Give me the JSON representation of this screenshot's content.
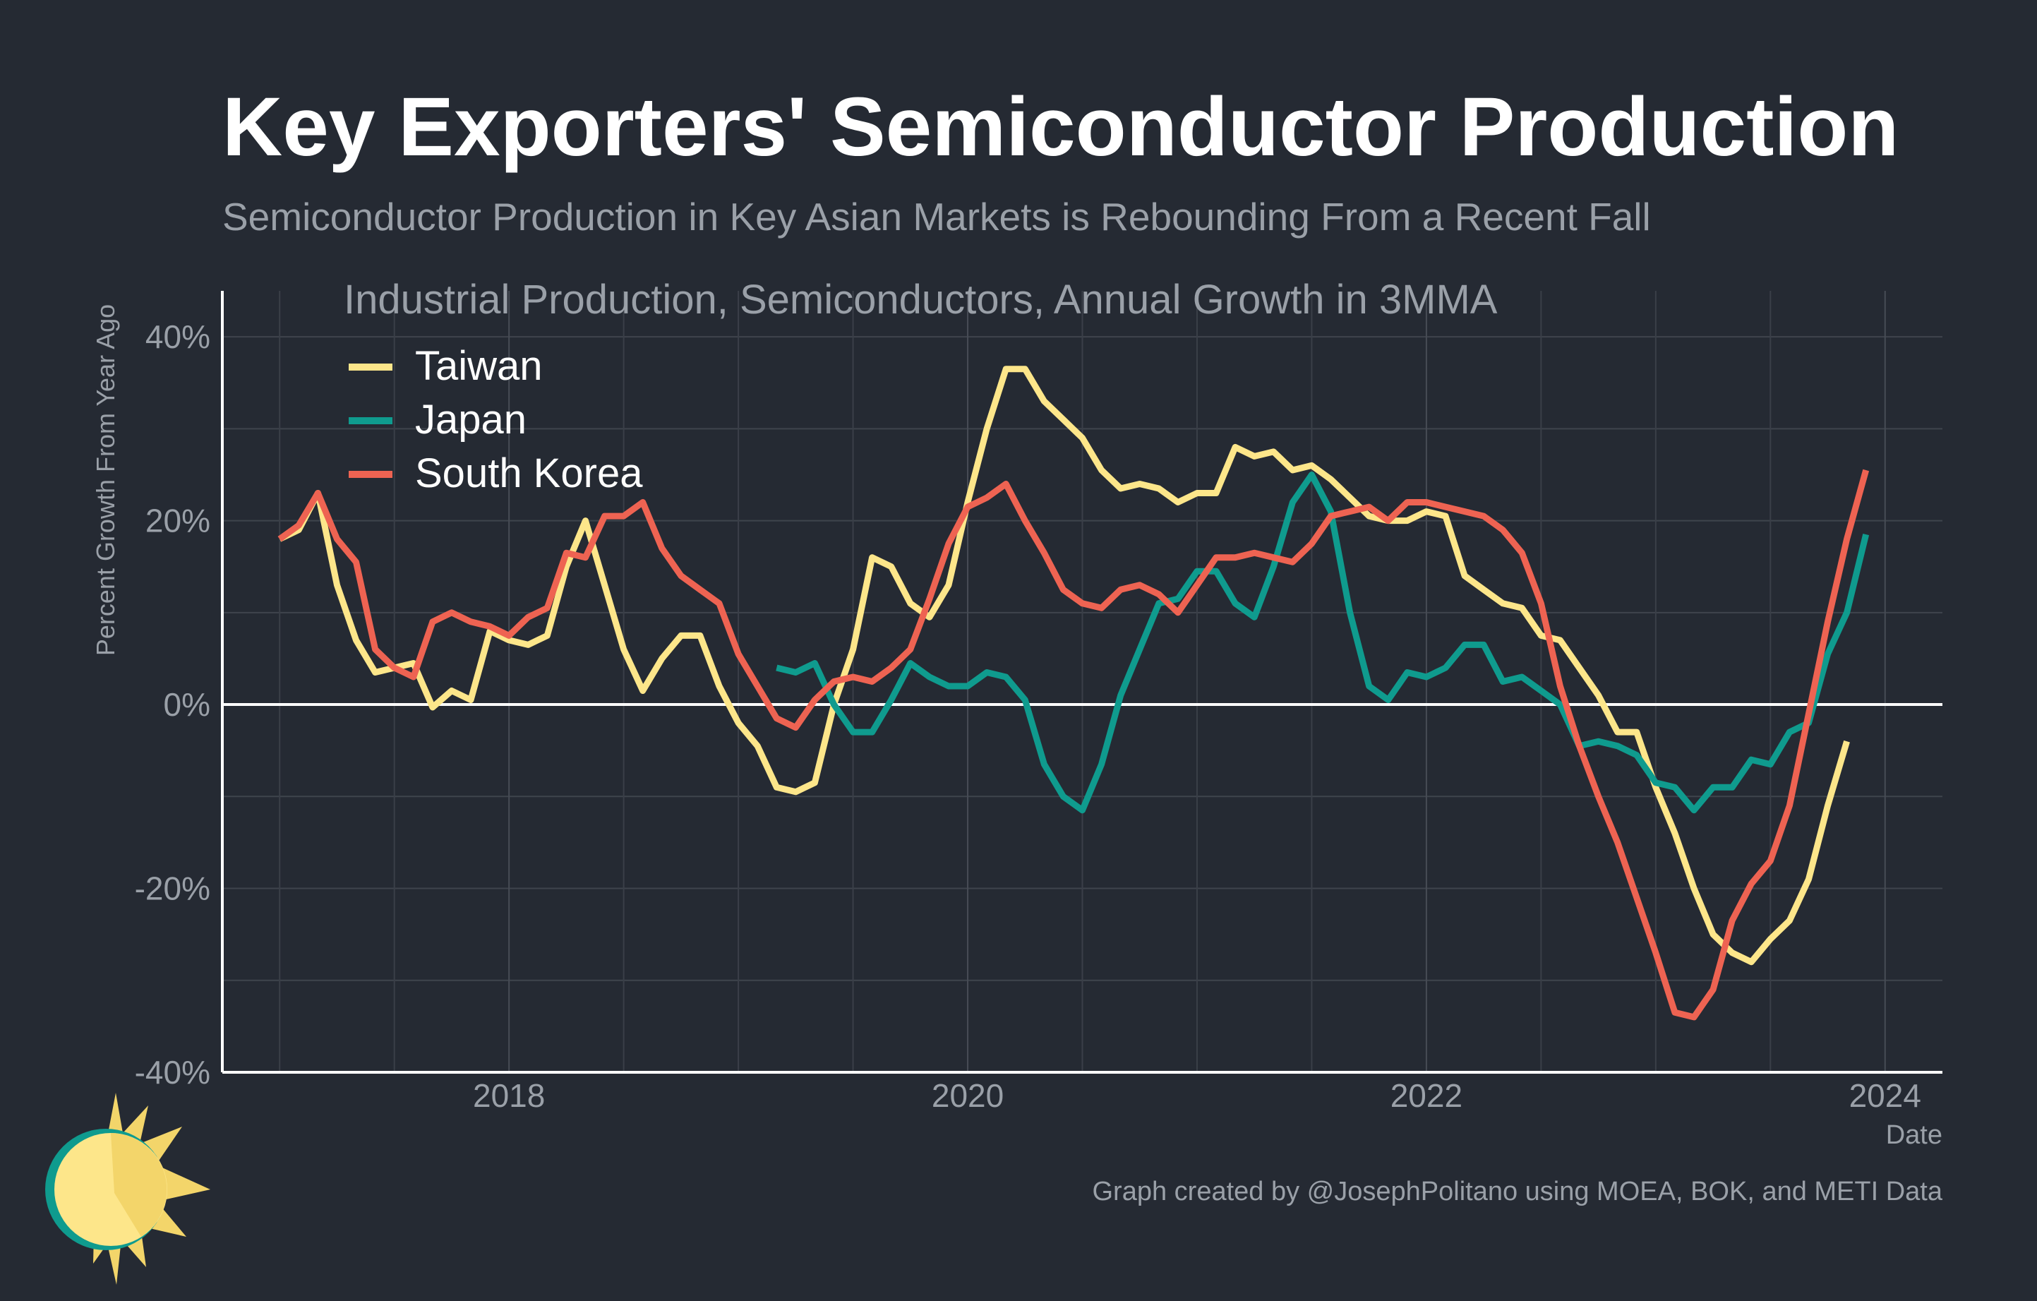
{
  "chart_data": {
    "type": "line",
    "title": "Key Exporters' Semiconductor Production",
    "subtitle": "Semiconductor Production in Key Asian Markets is Rebounding From a Recent Fall",
    "inner_title": "Industrial Production, Semiconductors, Annual Growth in 3MMA",
    "xlabel": "Date",
    "ylabel": "Percent Growth From Year Ago",
    "caption": "Graph created by @JosephPolitano using MOEA, BOK, and METI Data",
    "xlim": [
      2016.75,
      2024.25
    ],
    "ylim": [
      -40,
      45
    ],
    "x_ticks": [
      {
        "value": 2018,
        "label": "2018"
      },
      {
        "value": 2020,
        "label": "2020"
      },
      {
        "value": 2022,
        "label": "2022"
      },
      {
        "value": 2024,
        "label": "2024"
      }
    ],
    "y_ticks": [
      {
        "value": 40,
        "label": "40%"
      },
      {
        "value": 20,
        "label": "20%"
      },
      {
        "value": 0,
        "label": "0%"
      },
      {
        "value": -20,
        "label": "-20%"
      },
      {
        "value": -40,
        "label": "-40%"
      }
    ],
    "legend_position": "top-left",
    "grid": true,
    "zero_line": true,
    "series": [
      {
        "name": "Taiwan",
        "color": "#fde68a",
        "start": 2017.0,
        "values": [
          18,
          19,
          23,
          13,
          7,
          3.5,
          4,
          4.5,
          -0.3,
          1.5,
          0.5,
          8,
          7,
          6.5,
          7.5,
          15,
          20,
          13,
          6,
          1.5,
          5,
          7.5,
          7.5,
          2,
          -2,
          -4.5,
          -9,
          -9.5,
          -8.5,
          0,
          6,
          16,
          15,
          11,
          9.5,
          13,
          22,
          30,
          36.5,
          36.5,
          33,
          31,
          29,
          25.5,
          23.5,
          24,
          23.5,
          22,
          23,
          23,
          28,
          27,
          27.5,
          25.5,
          26,
          24.5,
          22.5,
          20.5,
          20,
          20,
          21,
          20.5,
          14,
          12.5,
          11,
          10.5,
          7.5,
          7,
          4,
          1,
          -3,
          -3,
          -9,
          -14,
          -20,
          -25,
          -27,
          -28,
          -25.5,
          -23.5,
          -19,
          -11,
          -4
        ]
      },
      {
        "name": "Japan",
        "color": "#0f9b8e",
        "start": 2019.1667,
        "values": [
          4,
          3.5,
          4.5,
          0,
          -3,
          -3,
          0.5,
          4.5,
          3,
          2,
          2,
          3.5,
          3,
          0.5,
          -6.5,
          -10,
          -11.5,
          -6.5,
          1,
          6,
          11,
          11.5,
          14.5,
          14.5,
          11,
          9.5,
          15,
          22,
          25,
          21,
          10,
          2,
          0.5,
          3.5,
          3,
          4,
          6.5,
          6.5,
          2.5,
          3,
          1.5,
          0,
          -4.5,
          -4,
          -4.5,
          -5.5,
          -8.5,
          -9,
          -11.5,
          -9,
          -9,
          -6,
          -6.5,
          -3,
          -2,
          5.5,
          10,
          18.5
        ]
      },
      {
        "name": "South Korea",
        "color": "#ee6352",
        "start": 2017.0,
        "values": [
          18,
          19.5,
          23,
          18,
          15.5,
          6,
          4,
          3,
          9,
          10,
          9,
          8.5,
          7.5,
          9.5,
          10.5,
          16.5,
          16,
          20.5,
          20.5,
          22,
          17,
          14,
          12.5,
          11,
          5.5,
          2,
          -1.5,
          -2.5,
          0.5,
          2.5,
          3,
          2.5,
          4,
          6,
          11.5,
          17.5,
          21.5,
          22.5,
          24,
          20,
          16.5,
          12.5,
          11,
          10.5,
          12.5,
          13,
          12,
          10,
          13,
          16,
          16,
          16.5,
          16,
          15.5,
          17.5,
          20.5,
          21,
          21.5,
          20,
          22,
          22,
          21.5,
          21,
          20.5,
          19,
          16.5,
          11,
          2,
          -4.5,
          -10,
          -15,
          -21,
          -27,
          -33.5,
          -34,
          -31,
          -23.5,
          -19.5,
          -17,
          -11,
          -1,
          9,
          18,
          25.5
        ]
      }
    ]
  },
  "logo": "sun-logo"
}
